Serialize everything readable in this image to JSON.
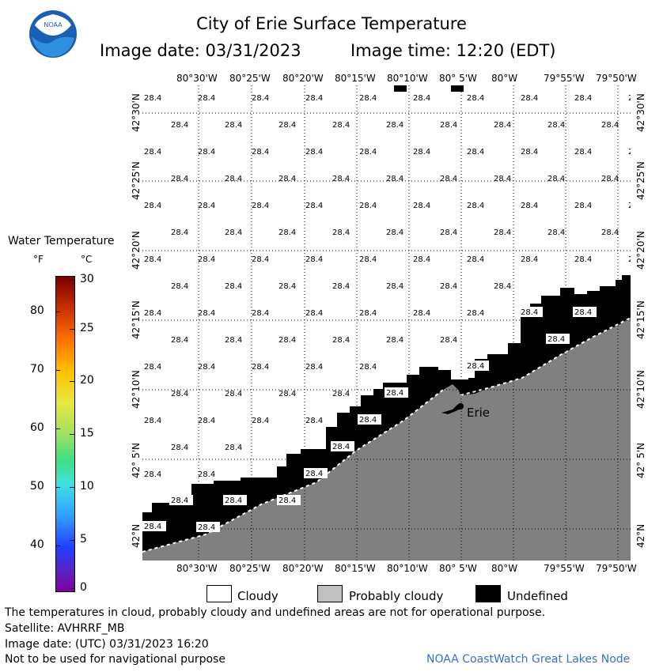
{
  "header": {
    "title": "City of Erie Surface Temperature",
    "image_date": "Image date: 03/31/2023",
    "image_time": "Image time: 12:20 (EDT)",
    "logo_text": "NOAA"
  },
  "map": {
    "lon_labels": [
      "80°30'W",
      "80°25'W",
      "80°20'W",
      "80°15'W",
      "80°10'W",
      "80° 5'W",
      "80°W",
      "79°55'W",
      "79°50'W"
    ],
    "lat_labels_left": [
      "42°30'N",
      "42°25'N",
      "42°20'N",
      "42°15'N",
      "42°10'N",
      "42° 5'N",
      "42°N"
    ],
    "lat_labels_right": [
      "42°30'N",
      "42°25'N",
      "42°20'N",
      "42°15'N",
      "42°10'N",
      "42° 5'N",
      "42°N"
    ],
    "temp_value": "28.4",
    "city_label": "Erie",
    "colors": {
      "land": "#808080",
      "undefined": "#000000",
      "cloudy": "#ffffff",
      "probably_cloudy": "#c0c0c0"
    }
  },
  "colorbar": {
    "title": "Water Temperature",
    "unit_f": "°F",
    "unit_c": "°C",
    "f_ticks": [
      "80",
      "70",
      "60",
      "50",
      "40"
    ],
    "c_ticks": [
      "30",
      "25",
      "20",
      "15",
      "10",
      "5",
      "0"
    ]
  },
  "legend": {
    "cloudy": "Cloudy",
    "probably_cloudy": "Probably cloudy",
    "undefined": "Undefined"
  },
  "footer": {
    "line1": "The temperatures in cloud, probably cloudy and undefined areas are not for operational purpose.",
    "line2": "Satellite: AVHRRF_MB",
    "line3": "Image date: (UTC) 03/31/2023  16:20",
    "line4": "Not to be used for navigational purpose",
    "credit": "NOAA CoastWatch Great Lakes Node"
  }
}
